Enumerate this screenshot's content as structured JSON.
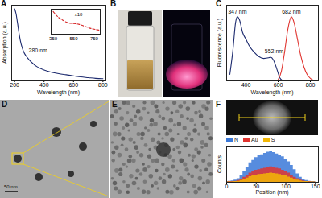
{
  "chart_data": [
    {
      "panel": "A",
      "type": "line",
      "x_label": "Wavelength (nm)",
      "y_label": "Absorption (a.u.)",
      "x": [
        200,
        210,
        220,
        230,
        240,
        250,
        260,
        280,
        300,
        325,
        350,
        400,
        450,
        500,
        550,
        600,
        650,
        700,
        750,
        800
      ],
      "values": [
        1.0,
        0.93,
        0.8,
        0.66,
        0.55,
        0.47,
        0.41,
        0.34,
        0.29,
        0.24,
        0.2,
        0.15,
        0.12,
        0.1,
        0.085,
        0.07,
        0.055,
        0.045,
        0.035,
        0.03
      ],
      "color": "#1c2a6e",
      "xlim": [
        180,
        820
      ],
      "xticks": [
        200,
        400,
        600,
        800
      ],
      "ylim": [
        0,
        1.05
      ],
      "tick_labels": "x",
      "annotations": [
        {
          "text": "280 nm",
          "x": 295,
          "y": 0.42
        }
      ],
      "inset": {
        "type": "line",
        "x": [
          350,
          400,
          450,
          500,
          550,
          600,
          650,
          700,
          750,
          800
        ],
        "values": [
          1.0,
          0.75,
          0.6,
          0.5,
          0.47,
          0.44,
          0.36,
          0.28,
          0.22,
          0.18
        ],
        "color": "#d62728",
        "line_style": "dashed",
        "xlim": [
          330,
          810
        ],
        "xticks": [
          350,
          550,
          750
        ],
        "ylim": [
          0,
          1.1
        ],
        "tick_labels": "x",
        "annotations": [
          {
            "text": "x10",
            "x": 560,
            "y": 0.85
          }
        ]
      }
    },
    {
      "panel": "C",
      "type": "line",
      "x_label": "Wavelength (nm)",
      "y_label": "Fluorescence (a.u.)",
      "xlim": [
        280,
        850
      ],
      "xticks": [
        400,
        600,
        800
      ],
      "ylim": [
        0,
        1.18
      ],
      "tick_labels": "x",
      "series": [
        {
          "color": "#1c2a6e",
          "x": [
            300,
            320,
            335,
            347,
            360,
            380,
            400,
            420,
            450,
            480,
            510,
            540,
            552,
            570,
            590,
            610,
            630
          ],
          "values": [
            0.1,
            0.5,
            0.9,
            1.0,
            0.95,
            0.75,
            0.65,
            0.55,
            0.45,
            0.38,
            0.35,
            0.36,
            0.37,
            0.33,
            0.2,
            0.05,
            0.0
          ]
        },
        {
          "color": "#e0342f",
          "x": [
            600,
            620,
            640,
            660,
            682,
            700,
            720,
            740,
            760,
            780,
            800,
            820
          ],
          "values": [
            0.02,
            0.15,
            0.45,
            0.8,
            1.0,
            0.9,
            0.65,
            0.4,
            0.22,
            0.1,
            0.04,
            0.01
          ]
        }
      ],
      "annotations": [
        {
          "text": "347 nm",
          "x": 347,
          "y": 1.08
        },
        {
          "text": "552 nm",
          "x": 575,
          "y": 0.46
        },
        {
          "text": "682 nm",
          "x": 682,
          "y": 1.08
        }
      ]
    },
    {
      "panel": "F",
      "type": "area",
      "x_label": "Position (nm)",
      "y_label": "Counts",
      "x": [
        0,
        5,
        10,
        15,
        20,
        25,
        30,
        35,
        40,
        45,
        50,
        55,
        60,
        65,
        70,
        75,
        80,
        85,
        90,
        95,
        100,
        105,
        110,
        115,
        120,
        125,
        130,
        135,
        140,
        145,
        150
      ],
      "xlim": [
        0,
        155
      ],
      "xticks": [
        0,
        50,
        100,
        150
      ],
      "ylim": [
        0,
        100
      ],
      "tick_labels": "x",
      "legend": "top-left",
      "series": [
        {
          "name": "N",
          "color": "#3a78d8",
          "values": [
            2,
            3,
            4,
            6,
            10,
            18,
            30,
            42,
            55,
            62,
            70,
            75,
            78,
            82,
            85,
            88,
            84,
            80,
            76,
            72,
            66,
            58,
            48,
            36,
            24,
            14,
            8,
            5,
            3,
            2,
            2
          ]
        },
        {
          "name": "Au",
          "color": "#e0342f",
          "values": [
            1,
            2,
            2,
            3,
            5,
            8,
            14,
            20,
            26,
            30,
            34,
            36,
            38,
            40,
            42,
            44,
            42,
            40,
            38,
            34,
            30,
            26,
            20,
            14,
            10,
            6,
            4,
            2,
            2,
            1,
            1
          ]
        },
        {
          "name": "S",
          "color": "#f2b705",
          "values": [
            1,
            1,
            1,
            2,
            3,
            5,
            8,
            12,
            16,
            18,
            20,
            22,
            23,
            24,
            25,
            26,
            25,
            24,
            22,
            20,
            18,
            15,
            12,
            9,
            6,
            4,
            2,
            2,
            1,
            1,
            1
          ]
        }
      ]
    }
  ],
  "images": [
    {
      "panel": "B"
    },
    {
      "panel": "D",
      "scale_bar": "50 nm"
    },
    {
      "panel": "E"
    }
  ]
}
